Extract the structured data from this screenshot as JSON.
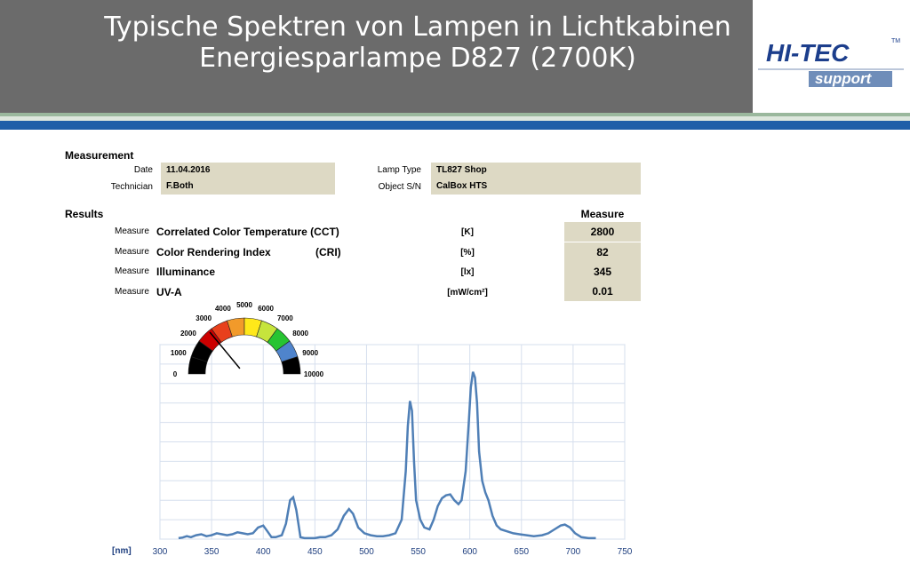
{
  "header": {
    "title_line1": "Typische Spektren von Lampen in Lichtkabinen",
    "title_line2": "Energiesparlampe D827 (2700K)",
    "logo_text_top": "HI-TEC",
    "logo_tm": "TM",
    "logo_text_bottom": "support"
  },
  "measurement": {
    "section_label": "Measurement",
    "date_label": "Date",
    "date_value": "11.04.2016",
    "technician_label": "Technician",
    "technician_value": "F.Both",
    "lamp_type_label": "Lamp Type",
    "lamp_type_value": "TL827 Shop",
    "object_sn_label": "Object S/N",
    "object_sn_value": "CalBox HTS"
  },
  "results": {
    "section_label": "Results",
    "measure_header": "Measure",
    "rows": [
      {
        "prefix": "Measure",
        "name": "Correlated Color Temperature (CCT)",
        "unit": "[K]",
        "value": "2800"
      },
      {
        "prefix": "Measure",
        "name": "Color Rendering Index",
        "name_suffix": "(CRI)",
        "unit": "[%]",
        "value": "82"
      },
      {
        "prefix": "Measure",
        "name": "Illuminance",
        "unit": "[lx]",
        "value": "345"
      },
      {
        "prefix": "Measure",
        "name": "UV-A",
        "unit": "[mW/cm²]",
        "value": "0.01"
      }
    ]
  },
  "gauge": {
    "labels": [
      "0",
      "1000",
      "2000",
      "3000",
      "4000",
      "5000",
      "6000",
      "7000",
      "8000",
      "9000",
      "10000"
    ],
    "needle_value": 2800,
    "segment_colors": [
      "#000000",
      "#000000",
      "#cc0000",
      "#e8401c",
      "#f29a2a",
      "#ffe81a",
      "#c6e43c",
      "#27c432",
      "#4f84cc",
      "#000000"
    ]
  },
  "chart_data": {
    "type": "line",
    "xlabel": "[nm]",
    "x_ticks": [
      300,
      350,
      400,
      450,
      500,
      550,
      600,
      650,
      700,
      750
    ],
    "xlim": [
      300,
      750
    ],
    "ylim": [
      0,
      1
    ],
    "grid": true,
    "series": [
      {
        "color": "#4f7fb6",
        "points": [
          [
            318,
            0.005
          ],
          [
            322,
            0.008
          ],
          [
            326,
            0.015
          ],
          [
            330,
            0.01
          ],
          [
            335,
            0.02
          ],
          [
            340,
            0.025
          ],
          [
            345,
            0.015
          ],
          [
            350,
            0.02
          ],
          [
            355,
            0.03
          ],
          [
            360,
            0.025
          ],
          [
            365,
            0.02
          ],
          [
            370,
            0.025
          ],
          [
            375,
            0.035
          ],
          [
            380,
            0.03
          ],
          [
            385,
            0.025
          ],
          [
            390,
            0.03
          ],
          [
            395,
            0.06
          ],
          [
            400,
            0.07
          ],
          [
            404,
            0.04
          ],
          [
            408,
            0.01
          ],
          [
            412,
            0.01
          ],
          [
            418,
            0.02
          ],
          [
            422,
            0.08
          ],
          [
            426,
            0.2
          ],
          [
            429,
            0.215
          ],
          [
            432,
            0.15
          ],
          [
            436,
            0.01
          ],
          [
            440,
            0.005
          ],
          [
            445,
            0.005
          ],
          [
            450,
            0.005
          ],
          [
            455,
            0.01
          ],
          [
            460,
            0.01
          ],
          [
            466,
            0.02
          ],
          [
            472,
            0.05
          ],
          [
            478,
            0.12
          ],
          [
            483,
            0.155
          ],
          [
            487,
            0.13
          ],
          [
            492,
            0.06
          ],
          [
            498,
            0.03
          ],
          [
            504,
            0.02
          ],
          [
            510,
            0.015
          ],
          [
            516,
            0.015
          ],
          [
            522,
            0.02
          ],
          [
            528,
            0.03
          ],
          [
            534,
            0.1
          ],
          [
            538,
            0.35
          ],
          [
            540,
            0.58
          ],
          [
            542,
            0.71
          ],
          [
            544,
            0.66
          ],
          [
            546,
            0.4
          ],
          [
            548,
            0.2
          ],
          [
            552,
            0.1
          ],
          [
            556,
            0.06
          ],
          [
            561,
            0.05
          ],
          [
            565,
            0.1
          ],
          [
            569,
            0.17
          ],
          [
            573,
            0.21
          ],
          [
            577,
            0.225
          ],
          [
            581,
            0.23
          ],
          [
            585,
            0.2
          ],
          [
            589,
            0.18
          ],
          [
            592,
            0.2
          ],
          [
            596,
            0.35
          ],
          [
            599,
            0.6
          ],
          [
            601,
            0.78
          ],
          [
            603,
            0.86
          ],
          [
            605,
            0.83
          ],
          [
            607,
            0.7
          ],
          [
            609,
            0.45
          ],
          [
            612,
            0.3
          ],
          [
            615,
            0.24
          ],
          [
            618,
            0.2
          ],
          [
            622,
            0.12
          ],
          [
            626,
            0.07
          ],
          [
            630,
            0.05
          ],
          [
            636,
            0.04
          ],
          [
            642,
            0.03
          ],
          [
            648,
            0.025
          ],
          [
            655,
            0.02
          ],
          [
            662,
            0.015
          ],
          [
            670,
            0.02
          ],
          [
            676,
            0.03
          ],
          [
            682,
            0.05
          ],
          [
            688,
            0.07
          ],
          [
            692,
            0.075
          ],
          [
            697,
            0.06
          ],
          [
            702,
            0.03
          ],
          [
            708,
            0.01
          ],
          [
            715,
            0.005
          ],
          [
            722,
            0.005
          ]
        ]
      }
    ]
  }
}
